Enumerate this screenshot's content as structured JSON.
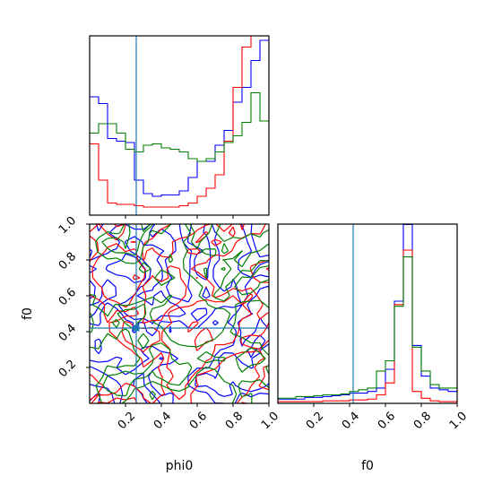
{
  "chart_data": [
    {
      "type": "histogram",
      "panel": "phi0-marginal",
      "xlim": [
        0,
        1
      ],
      "yticks": "none",
      "xtick_labels": "hidden",
      "xtick_values": [
        0.2,
        0.4,
        0.6,
        0.8
      ],
      "truth_x": 0.26,
      "bin_edges": [
        0.0,
        0.05,
        0.1,
        0.15,
        0.2,
        0.25,
        0.3,
        0.35,
        0.4,
        0.45,
        0.5,
        0.55,
        0.6,
        0.65,
        0.7,
        0.75,
        0.8,
        0.85,
        0.9,
        0.95,
        1.0
      ],
      "series": [
        {
          "color": "#0000ff",
          "values": [
            0.88,
            0.83,
            0.57,
            0.55,
            0.54,
            0.26,
            0.16,
            0.14,
            0.15,
            0.15,
            0.18,
            0.28,
            0.4,
            0.4,
            0.52,
            0.63,
            0.84,
            0.95,
            1.15,
            1.3
          ]
        },
        {
          "color": "#ff0000",
          "values": [
            0.53,
            0.26,
            0.09,
            0.08,
            0.08,
            0.07,
            0.06,
            0.06,
            0.06,
            0.06,
            0.07,
            0.09,
            0.14,
            0.2,
            0.3,
            0.55,
            0.95,
            1.25,
            1.4,
            1.45
          ]
        },
        {
          "color": "#008000",
          "values": [
            0.61,
            0.68,
            0.68,
            0.61,
            0.49,
            0.47,
            0.52,
            0.53,
            0.5,
            0.49,
            0.47,
            0.42,
            0.4,
            0.42,
            0.47,
            0.54,
            0.59,
            0.69,
            0.91,
            0.7
          ]
        }
      ]
    },
    {
      "type": "contour",
      "panel": "phi0-f0-joint",
      "xlim": [
        0,
        1
      ],
      "ylim": [
        0,
        1
      ],
      "xlabel": "phi0",
      "ylabel": "f0",
      "xtick_values": [
        0.2,
        0.4,
        0.6,
        0.8,
        1.0
      ],
      "xtick_labels": [
        "0.2",
        "0.4",
        "0.6",
        "0.8",
        "1.0"
      ],
      "ytick_values": [
        0.2,
        0.4,
        0.6,
        0.8,
        1.0
      ],
      "ytick_labels": [
        "0.2",
        "0.4",
        "0.6",
        "0.8",
        "1.0"
      ],
      "truth_x": 0.26,
      "truth_y": 0.42,
      "series": [
        {
          "color": "#0000ff"
        },
        {
          "color": "#ff0000"
        },
        {
          "color": "#008000"
        }
      ]
    },
    {
      "type": "histogram",
      "panel": "f0-marginal",
      "xlim": [
        0,
        1
      ],
      "xlabel": "f0",
      "xtick_values": [
        0.2,
        0.4,
        0.6,
        0.8,
        1.0
      ],
      "xtick_labels": [
        "0.2",
        "0.4",
        "0.6",
        "0.8",
        "1.0"
      ],
      "truth_x": 0.42,
      "bin_edges": [
        0.0,
        0.05,
        0.1,
        0.15,
        0.2,
        0.25,
        0.3,
        0.35,
        0.4,
        0.45,
        0.5,
        0.55,
        0.6,
        0.65,
        0.7,
        0.75,
        0.8,
        0.85,
        0.9,
        0.95,
        1.0
      ],
      "series": [
        {
          "color": "#0000ff",
          "values": [
            0.025,
            0.025,
            0.025,
            0.035,
            0.035,
            0.04,
            0.045,
            0.05,
            0.06,
            0.06,
            0.07,
            0.09,
            0.2,
            0.6,
            1.05,
            0.34,
            0.16,
            0.09,
            0.08,
            0.07
          ]
        },
        {
          "color": "#ff0000",
          "values": [
            0.01,
            0.01,
            0.01,
            0.01,
            0.01,
            0.015,
            0.015,
            0.015,
            0.02,
            0.02,
            0.025,
            0.05,
            0.12,
            0.58,
            0.9,
            0.07,
            0.03,
            0.015,
            0.01,
            0.01
          ]
        },
        {
          "color": "#008000",
          "values": [
            0.03,
            0.03,
            0.04,
            0.04,
            0.045,
            0.05,
            0.05,
            0.055,
            0.07,
            0.08,
            0.09,
            0.19,
            0.25,
            0.57,
            0.86,
            0.33,
            0.19,
            0.11,
            0.09,
            0.09
          ]
        }
      ]
    }
  ]
}
